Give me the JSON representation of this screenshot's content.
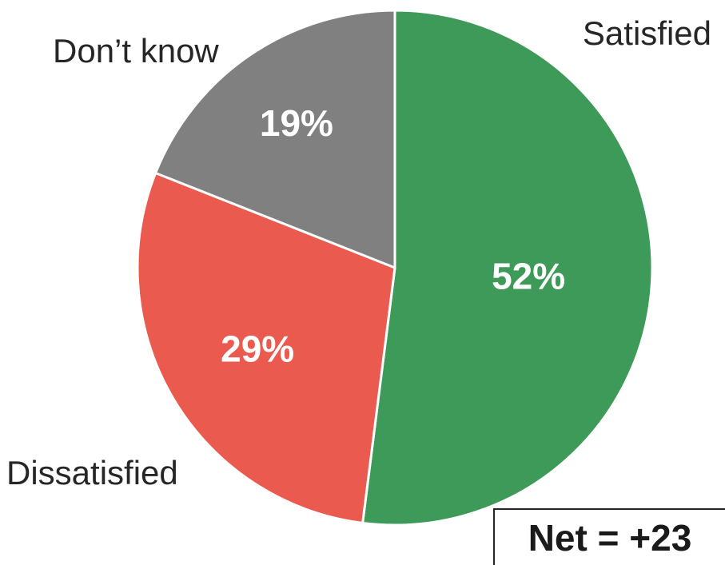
{
  "chart_data": {
    "type": "pie",
    "slices": [
      {
        "label": "Satisfied",
        "value": 52,
        "value_label": "52%",
        "color": "#3d9a58"
      },
      {
        "label": "Dissatisfied",
        "value": 29,
        "value_label": "29%",
        "color": "#eb5a4e"
      },
      {
        "label": "Don’t know",
        "value": 19,
        "value_label": "19%",
        "color": "#808080"
      }
    ],
    "start": "12 o'clock",
    "direction": "clockwise"
  },
  "net": {
    "label": "Net = +23"
  }
}
